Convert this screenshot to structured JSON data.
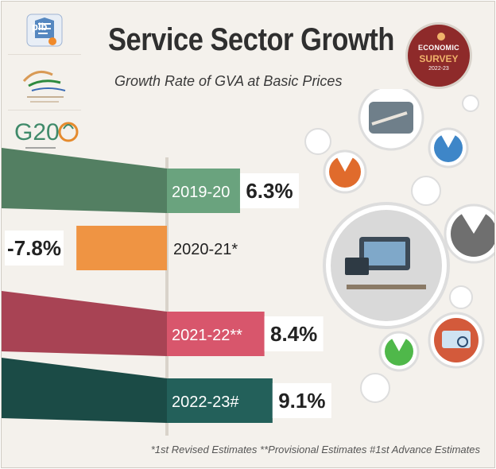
{
  "title": "Service Sector Growth",
  "subtitle": "Growth Rate of GVA at Basic Prices",
  "logos": {
    "pib": "pib",
    "g20": "G20"
  },
  "badge": {
    "line1": "ECONOMIC",
    "line2": "SURVEY",
    "line3": "2022-23"
  },
  "footnote": "*1st Revised Estimates **Provisional Estimates #1st Advance Estimates",
  "chart_data": {
    "type": "bar",
    "orientation": "horizontal",
    "title": "Service Sector Growth",
    "subtitle": "Growth Rate of GVA at Basic Prices",
    "categories": [
      "2019-20",
      "2020-21*",
      "2021-22**",
      "2022-23#"
    ],
    "values": [
      6.3,
      -7.8,
      8.4,
      9.1
    ],
    "value_labels": [
      "6.3%",
      "-7.8%",
      "8.4%",
      "9.1%"
    ],
    "colors": [
      "#6aa37e",
      "#ef9443",
      "#d8566c",
      "#23605a"
    ],
    "unit": "%"
  },
  "colors": {
    "background": "#f4f1ec",
    "badge": "#8e2a2a"
  },
  "icons": [
    "pib-logo-icon",
    "azadi-ka-amrit-mahotsav-logo-icon",
    "g20-logo-icon",
    "economic-survey-badge-icon",
    "service-illustration-icon"
  ]
}
